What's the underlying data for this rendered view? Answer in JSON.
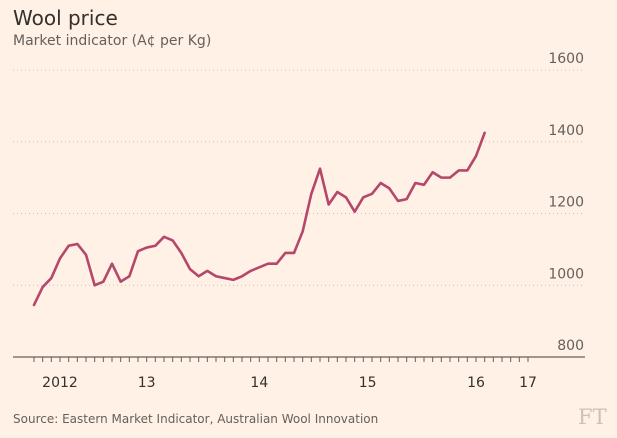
{
  "title": "Wool price",
  "subtitle": "Market indicator (A¢ per Kg)",
  "source": "Source: Eastern Market Indicator, Australian Wool Innovation",
  "logo_text": "FT",
  "colors": {
    "background": "#fff1e5",
    "line": "#b5476a",
    "grid": "#ccc1b7",
    "text": "#33302e",
    "muted": "#66605c"
  },
  "chart_data": {
    "type": "line",
    "xlim": [
      0,
      57
    ],
    "ylim": [
      800,
      1600
    ],
    "yticks": [
      800,
      1000,
      1200,
      1400,
      1600
    ],
    "xtick_labels": [
      {
        "i": 3,
        "label": "2012"
      },
      {
        "i": 13,
        "label": "13"
      },
      {
        "i": 26,
        "label": "14"
      },
      {
        "i": 38.5,
        "label": "15"
      },
      {
        "i": 51,
        "label": "16"
      },
      {
        "i": 57,
        "label": "17"
      }
    ],
    "grid": true,
    "series": [
      {
        "values": [
          945,
          995,
          1020,
          1075,
          1110,
          1115,
          1085,
          1000,
          1010,
          1060,
          1010,
          1025,
          1095,
          1105,
          1110,
          1135,
          1125,
          1090,
          1045,
          1025,
          1040,
          1025,
          1020,
          1015,
          1025,
          1040,
          1050,
          1060,
          1060,
          1090,
          1090,
          1150,
          1255,
          1325,
          1225,
          1260,
          1245,
          1205,
          1245,
          1255,
          1285,
          1270,
          1235,
          1240,
          1285,
          1280,
          1315,
          1300,
          1300,
          1320,
          1320,
          1360,
          1425
        ]
      }
    ]
  }
}
